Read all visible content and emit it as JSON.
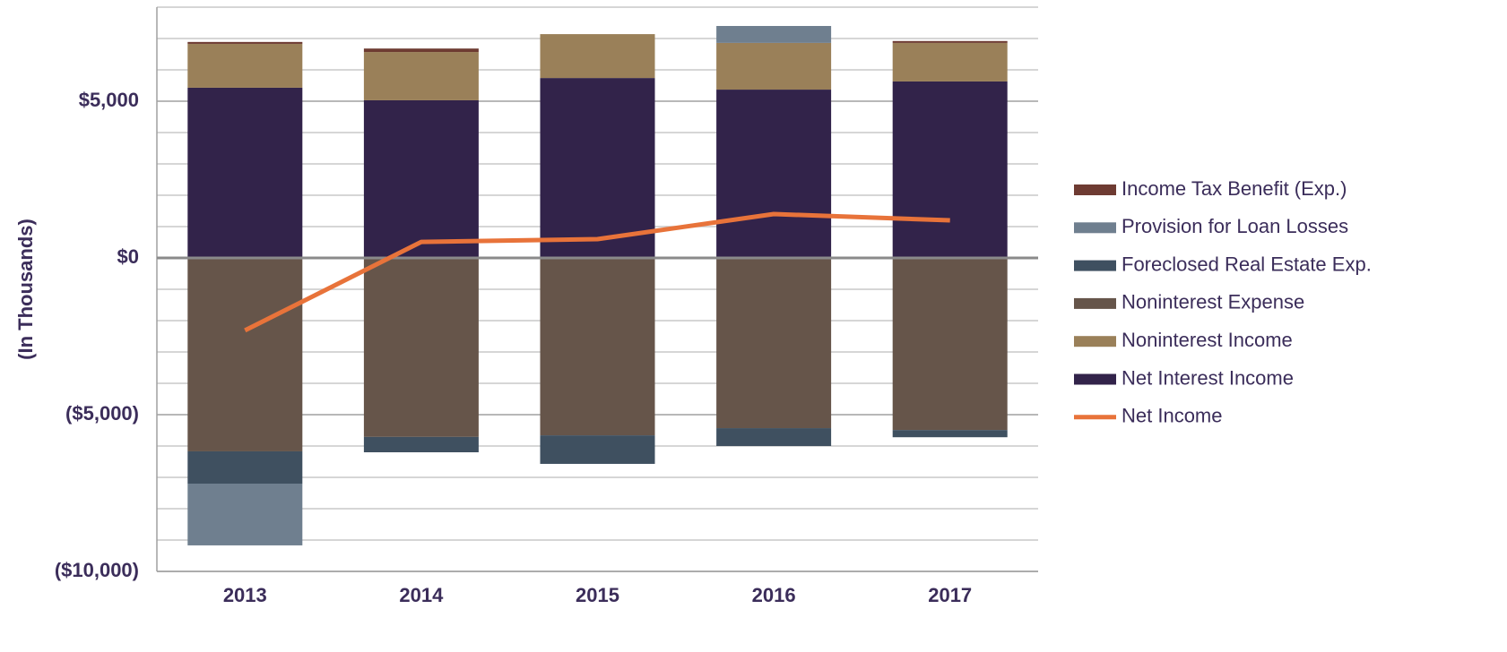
{
  "chart_data": {
    "type": "bar",
    "y_label": "(In Thousands)",
    "categories": [
      "2013",
      "2014",
      "2015",
      "2016",
      "2017"
    ],
    "series": [
      {
        "name": "Income Tax Benefit (Exp.)",
        "color": "#6e3b32",
        "values": [
          60,
          110,
          0,
          0,
          60
        ]
      },
      {
        "name": "Provision for Loan Losses",
        "color": "#6f7f8f",
        "values": [
          -1970,
          0,
          0,
          540,
          0
        ]
      },
      {
        "name": "Foreclosed Real Estate Exp.",
        "color": "#3f5060",
        "values": [
          -1030,
          -490,
          -910,
          -570,
          -230
        ]
      },
      {
        "name": "Noninterest Expense",
        "color": "#66554a",
        "values": [
          -6170,
          -5710,
          -5660,
          -5430,
          -5490
        ]
      },
      {
        "name": "Noninterest Income",
        "color": "#9a8059",
        "values": [
          1400,
          1540,
          1400,
          1490,
          1230
        ]
      },
      {
        "name": "Net Interest Income",
        "color": "#32234a",
        "values": [
          5430,
          5030,
          5740,
          5370,
          5630
        ]
      },
      {
        "name": "Net Income",
        "color": "#e8733a",
        "type": "line",
        "values": [
          -2310,
          510,
          600,
          1400,
          1200
        ]
      }
    ],
    "ylim": [
      -10000,
      8000
    ],
    "yticks": [
      {
        "value": -10000,
        "label": "($10,000)"
      },
      {
        "value": -5000,
        "label": "($5,000)"
      },
      {
        "value": 0,
        "label": "$0"
      },
      {
        "value": 5000,
        "label": "$5,000"
      }
    ],
    "minor_yticks": [
      -9000,
      -8000,
      -7000,
      -6000,
      -4000,
      -3000,
      -2000,
      -1000,
      1000,
      2000,
      3000,
      4000,
      6000,
      7000,
      8000
    ],
    "grid": true,
    "legend": "right"
  }
}
